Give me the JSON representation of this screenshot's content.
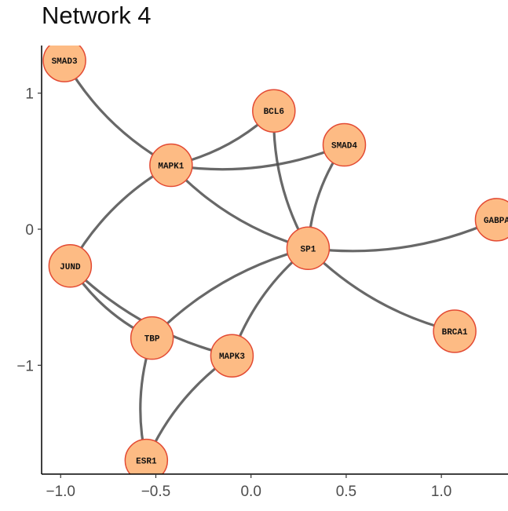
{
  "title": "Network 4",
  "chart_data": {
    "type": "network",
    "title": "Network 4",
    "xlim": [
      -1.1,
      1.35
    ],
    "ylim": [
      -1.8,
      1.35
    ],
    "x_ticks": [
      -1.0,
      -0.5,
      0.0,
      0.5,
      1.0
    ],
    "x_tick_labels": [
      "−1.0",
      "−0.5",
      "0.0",
      "0.5",
      "1.0"
    ],
    "y_ticks": [
      1,
      0,
      -1
    ],
    "y_tick_labels": [
      "1",
      "0",
      "−1"
    ],
    "colors": {
      "node_fill": "#fdbb84",
      "node_stroke": "#e34a33",
      "edge": "#4d4d4d"
    },
    "nodes": [
      {
        "id": "SMAD3",
        "x": -0.98,
        "y": 1.24
      },
      {
        "id": "BCL6",
        "x": 0.12,
        "y": 0.87
      },
      {
        "id": "SMAD4",
        "x": 0.49,
        "y": 0.62
      },
      {
        "id": "MAPK1",
        "x": -0.42,
        "y": 0.47
      },
      {
        "id": "GABPA",
        "x": 1.29,
        "y": 0.07
      },
      {
        "id": "SP1",
        "x": 0.3,
        "y": -0.14
      },
      {
        "id": "JUND",
        "x": -0.95,
        "y": -0.27
      },
      {
        "id": "BRCA1",
        "x": 1.07,
        "y": -0.75
      },
      {
        "id": "TBP",
        "x": -0.52,
        "y": -0.8
      },
      {
        "id": "MAPK3",
        "x": -0.1,
        "y": -0.93
      },
      {
        "id": "ESR1",
        "x": -0.55,
        "y": -1.7
      }
    ],
    "edges": [
      {
        "source": "SMAD3",
        "target": "MAPK1"
      },
      {
        "source": "MAPK1",
        "target": "BCL6"
      },
      {
        "source": "MAPK1",
        "target": "SMAD4"
      },
      {
        "source": "MAPK1",
        "target": "SP1"
      },
      {
        "source": "MAPK1",
        "target": "JUND"
      },
      {
        "source": "BCL6",
        "target": "SP1"
      },
      {
        "source": "SMAD4",
        "target": "SP1"
      },
      {
        "source": "SP1",
        "target": "GABPA"
      },
      {
        "source": "SP1",
        "target": "BRCA1"
      },
      {
        "source": "SP1",
        "target": "TBP"
      },
      {
        "source": "SP1",
        "target": "MAPK3"
      },
      {
        "source": "JUND",
        "target": "TBP"
      },
      {
        "source": "JUND",
        "target": "MAPK3"
      },
      {
        "source": "TBP",
        "target": "ESR1"
      },
      {
        "source": "MAPK3",
        "target": "ESR1"
      }
    ]
  }
}
